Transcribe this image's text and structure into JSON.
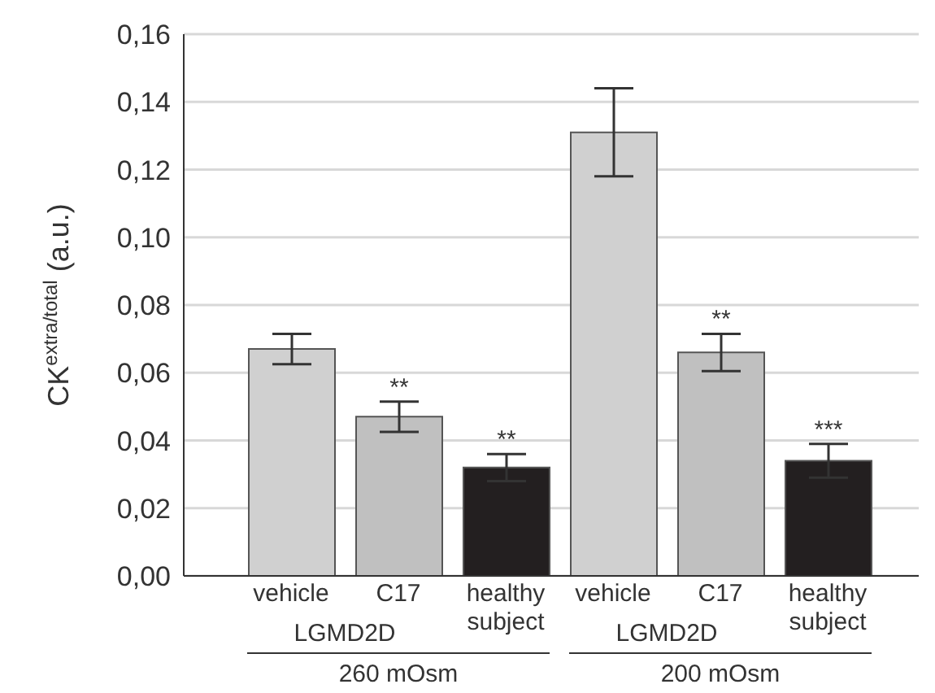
{
  "chart_data": {
    "type": "bar",
    "ylabel": "CK$^{extra/total}$ (a.u.)",
    "categories": [
      "vehicle",
      "C17",
      "healthy subject",
      "vehicle",
      "C17",
      "healthy subject"
    ],
    "values": [
      0.067,
      0.047,
      0.032,
      0.131,
      0.066,
      0.034
    ],
    "colors": [
      "#d0d0d0",
      "#c0c0c0",
      "#231f20",
      "#d0d0d0",
      "#c0c0c0",
      "#231f20"
    ],
    "errors": [
      0.0045,
      0.0045,
      0.004,
      0.013,
      0.0055,
      0.005
    ],
    "value_labels": [
      null,
      "**",
      "**",
      null,
      "**",
      "***"
    ],
    "annotations": [
      "LGMD2D",
      "LGMD2D",
      "260 mOsm",
      "200 mOsm"
    ],
    "ylim": [
      0,
      0.16
    ],
    "yticks": [
      {
        "value": 0,
        "label": "0,00"
      },
      {
        "value": 0.02,
        "label": "0,02"
      },
      {
        "value": 0.04,
        "label": "0,04"
      },
      {
        "value": 0.06,
        "label": "0,06"
      },
      {
        "value": 0.08,
        "label": "0,08"
      },
      {
        "value": 0.1,
        "label": "0,10"
      },
      {
        "value": 0.12,
        "label": "0,12"
      },
      {
        "value": 0.14,
        "label": "0,14"
      },
      {
        "value": 0.16,
        "label": "0,16"
      }
    ],
    "grid": "y"
  }
}
